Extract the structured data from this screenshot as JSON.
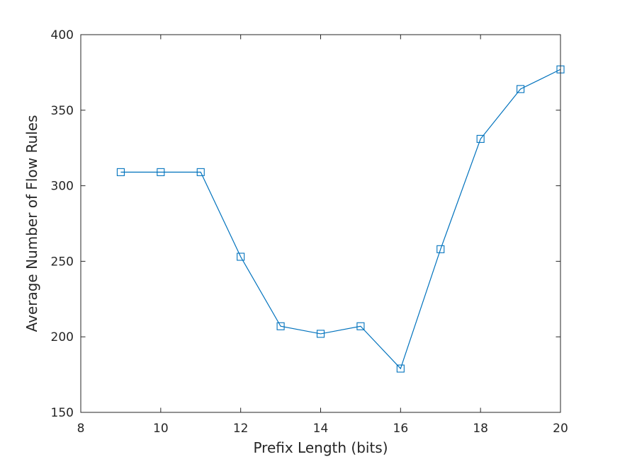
{
  "chart_data": {
    "type": "line",
    "title": "",
    "xlabel": "Prefix Length (bits)",
    "ylabel": "Average Number of Flow Rules",
    "xlim": [
      8,
      20
    ],
    "ylim": [
      150,
      400
    ],
    "xticks": [
      "8",
      "10",
      "12",
      "14",
      "16",
      "18",
      "20"
    ],
    "yticks": [
      "150",
      "200",
      "250",
      "300",
      "350",
      "400"
    ],
    "grid": false,
    "series": [
      {
        "color": "#0072bd",
        "marker": "square",
        "x": [
          9,
          10,
          11,
          12,
          13,
          14,
          15,
          16,
          17,
          18,
          19,
          20
        ],
        "y": [
          309,
          309,
          309,
          253,
          207,
          202,
          207,
          179,
          258,
          331,
          364,
          377
        ]
      }
    ]
  }
}
